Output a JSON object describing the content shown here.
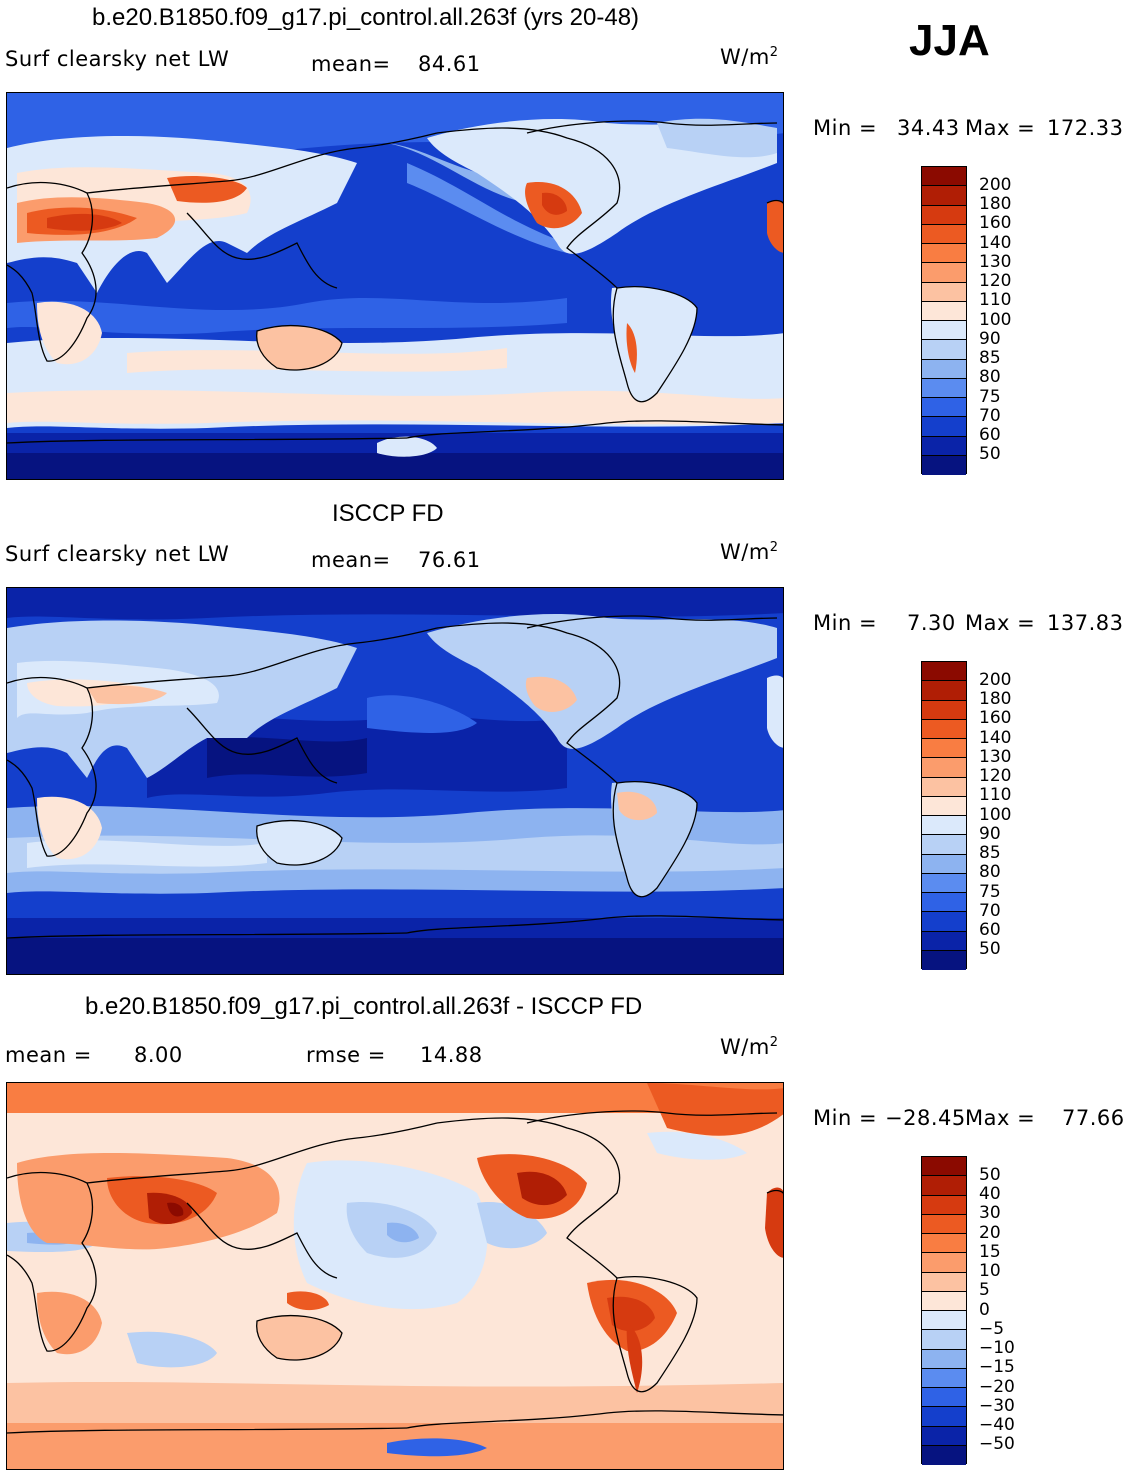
{
  "season": "JJA",
  "units_text": "W/m",
  "units_exp": "2",
  "panels": [
    {
      "title": "b.e20.B1850.f09_g17.pi_control.all.263f (yrs 20-48)",
      "left_label": "Surf clearsky net LW",
      "stat_label": "mean=",
      "stat_value": "84.61",
      "min_label": "Min =",
      "min_value": "34.43",
      "max_label": "Max =",
      "max_value": "172.33",
      "cbar_ticks": [
        "200",
        "180",
        "160",
        "140",
        "130",
        "120",
        "110",
        "100",
        "90",
        "85",
        "80",
        "75",
        "70",
        "60",
        "50"
      ]
    },
    {
      "title": "ISCCP FD",
      "left_label": "Surf clearsky net LW",
      "stat_label": "mean=",
      "stat_value": "76.61",
      "min_label": "Min =",
      "min_value": "7.30",
      "max_label": "Max =",
      "max_value": "137.83",
      "cbar_ticks": [
        "200",
        "180",
        "160",
        "140",
        "130",
        "120",
        "110",
        "100",
        "90",
        "85",
        "80",
        "75",
        "70",
        "60",
        "50"
      ]
    },
    {
      "title": "b.e20.B1850.f09_g17.pi_control.all.263f - ISCCP FD",
      "left_label": "mean =",
      "left_value": "8.00",
      "stat_label": "rmse =",
      "stat_value": "14.88",
      "min_label": "Min =",
      "min_value": "−28.45",
      "max_label": "Max =",
      "max_value": "77.66",
      "cbar_ticks": [
        "50",
        "40",
        "30",
        "20",
        "15",
        "10",
        "5",
        "0",
        "−5",
        "−10",
        "−15",
        "−20",
        "−30",
        "−40",
        "−50"
      ]
    }
  ],
  "colors": {
    "scale": [
      "#8b0a00",
      "#b01e05",
      "#d63a10",
      "#ec5a22",
      "#f97d42",
      "#fb9c6c",
      "#fcc2a2",
      "#fde6d8",
      "#dbe9fb",
      "#b8d1f5",
      "#8db3f0",
      "#5b8cf0",
      "#2f62e6",
      "#143fcc",
      "#0a23a8",
      "#061380"
    ]
  }
}
